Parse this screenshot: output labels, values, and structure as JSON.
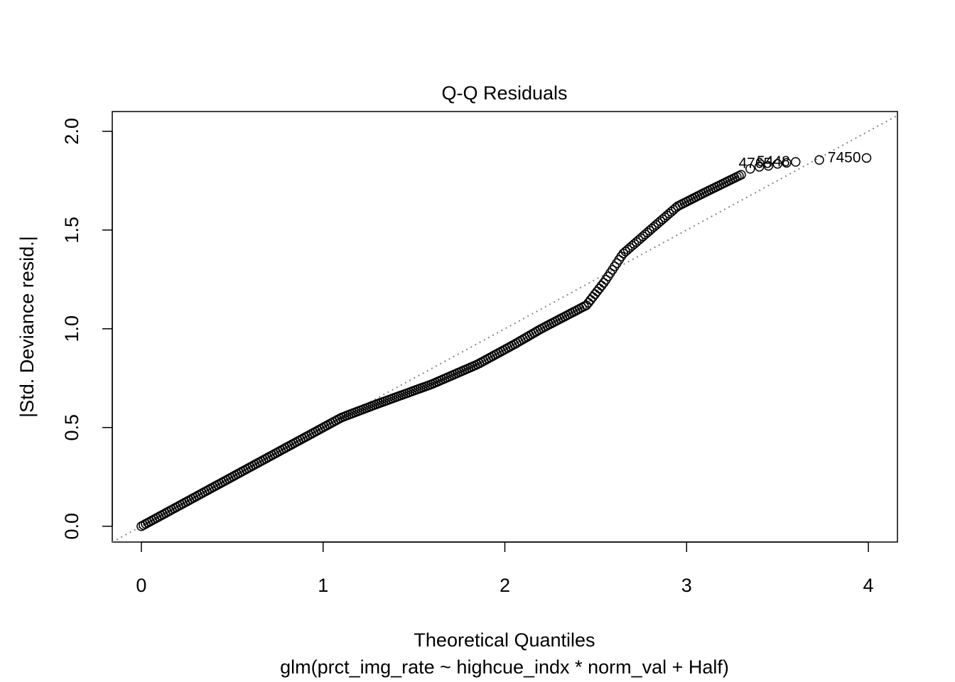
{
  "chart_data": {
    "type": "scatter",
    "title": "Q-Q Residuals",
    "xlabel": "Theoretical Quantiles",
    "subtitle": "glm(prct_img_rate ~ highcue_indx * norm_val + Half)",
    "ylabel": "|Std. Deviance resid.|",
    "xlim": [
      -0.16,
      4.16
    ],
    "ylim": [
      -0.08,
      2.1
    ],
    "xticks": [
      0,
      1,
      2,
      3,
      4
    ],
    "yticks": [
      0.0,
      0.5,
      1.0,
      1.5,
      2.0
    ],
    "xtick_labels": [
      "0",
      "1",
      "2",
      "3",
      "4"
    ],
    "ytick_labels": [
      "0.0",
      "0.5",
      "1.0",
      "1.5",
      "2.0"
    ],
    "reference_line": {
      "slope": 0.5,
      "intercept": 0.0,
      "style": "dotted",
      "color": "#888888"
    },
    "curve_knots": [
      [
        0.0,
        0.0
      ],
      [
        0.3,
        0.15
      ],
      [
        0.6,
        0.3
      ],
      [
        0.9,
        0.45
      ],
      [
        1.1,
        0.55
      ],
      [
        1.3,
        0.62
      ],
      [
        1.6,
        0.72
      ],
      [
        1.85,
        0.82
      ],
      [
        2.05,
        0.92
      ],
      [
        2.2,
        1.0
      ],
      [
        2.45,
        1.12
      ],
      [
        2.55,
        1.24
      ],
      [
        2.65,
        1.38
      ],
      [
        2.8,
        1.5
      ],
      [
        2.95,
        1.62
      ],
      [
        3.1,
        1.69
      ],
      [
        3.3,
        1.78
      ]
    ],
    "tail_points": [
      [
        3.35,
        1.81
      ],
      [
        3.4,
        1.82
      ],
      [
        3.45,
        1.825
      ],
      [
        3.5,
        1.835
      ],
      [
        3.55,
        1.84
      ],
      [
        3.6,
        1.845
      ],
      [
        3.73,
        1.855
      ],
      [
        3.99,
        1.865
      ]
    ],
    "point_labels": [
      {
        "text": "4765",
        "x": 3.5,
        "y": 1.835
      },
      {
        "text": "5448",
        "x": 3.6,
        "y": 1.845
      },
      {
        "text": "7450",
        "x": 3.99,
        "y": 1.865
      }
    ],
    "grid": false,
    "colors": {
      "points": "#000000",
      "reference": "#888888",
      "axis": "#000000"
    }
  }
}
